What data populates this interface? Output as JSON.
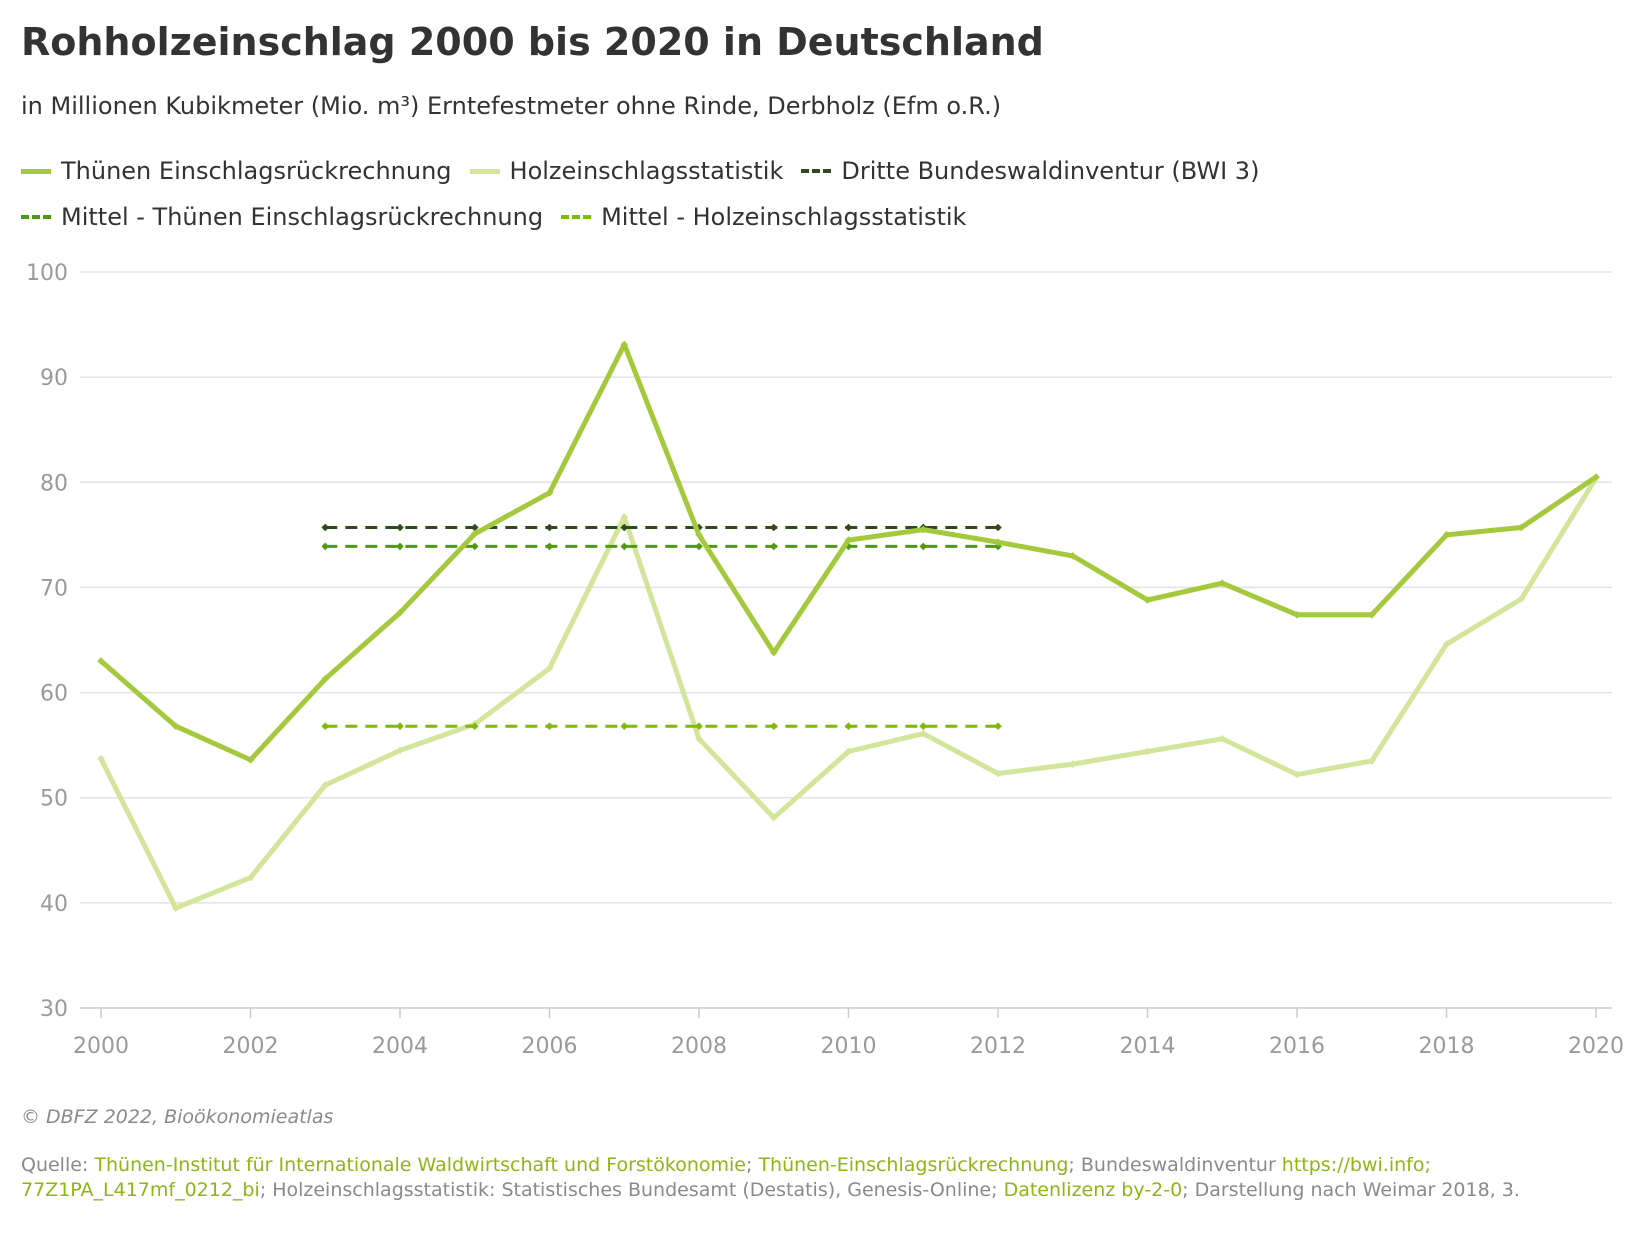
{
  "title": "Rohholzeinschlag 2000 bis 2020 in Deutschland",
  "subtitle": "in Millionen Kubikmeter (Mio. m³) Erntefestmeter ohne Rinde, Derbholz (Efm o.R.)",
  "legend": [
    {
      "label": "Thünen Einschlagsrückrechnung",
      "style": "solid",
      "color": "#a5c93c"
    },
    {
      "label": "Holzeinschlagsstatistik",
      "style": "solid",
      "color": "#d4e59b"
    },
    {
      "label": "Dritte Bundeswaldinventur (BWI 3)",
      "style": "dashed",
      "color": "#2f4a1b"
    },
    {
      "label": "Mittel - Thünen Einschlagsrückrechnung",
      "style": "dashed",
      "color": "#4f9a12"
    },
    {
      "label": "Mittel - Holzeinschlagsstatistik",
      "style": "dashed",
      "color": "#7dbb05"
    }
  ],
  "chart_data": {
    "type": "line",
    "xlim": [
      2000,
      2020
    ],
    "ylim": [
      30,
      100
    ],
    "x_ticks": [
      "2000",
      "2002",
      "2004",
      "2006",
      "2008",
      "2010",
      "2012",
      "2014",
      "2016",
      "2018",
      "2020"
    ],
    "y_ticks": [
      "30",
      "40",
      "50",
      "60",
      "70",
      "80",
      "90",
      "100"
    ],
    "grid": true,
    "legend_position": "top",
    "series": [
      {
        "name": "Thünen Einschlagsrückrechnung",
        "style": "solid",
        "color": "#a5c93c",
        "x": [
          2000,
          2001,
          2002,
          2003,
          2004,
          2005,
          2006,
          2007,
          2008,
          2009,
          2010,
          2011,
          2012,
          2013,
          2014,
          2015,
          2016,
          2017,
          2018,
          2019,
          2020
        ],
        "y": [
          63.0,
          56.8,
          53.6,
          61.3,
          67.6,
          75.1,
          79.0,
          93.1,
          75.0,
          63.8,
          74.5,
          75.5,
          74.3,
          73.0,
          68.8,
          70.4,
          67.4,
          67.4,
          75.0,
          75.7,
          80.5
        ]
      },
      {
        "name": "Holzeinschlagsstatistik",
        "style": "solid",
        "color": "#d4e59b",
        "x": [
          2000,
          2001,
          2002,
          2003,
          2004,
          2005,
          2006,
          2007,
          2008,
          2009,
          2010,
          2011,
          2012,
          2013,
          2014,
          2015,
          2016,
          2017,
          2018,
          2019,
          2020
        ],
        "y": [
          53.7,
          39.5,
          42.4,
          51.2,
          54.5,
          57.0,
          62.3,
          76.7,
          55.6,
          48.1,
          54.4,
          56.1,
          52.3,
          53.2,
          54.4,
          55.6,
          52.2,
          53.5,
          64.6,
          68.9,
          80.4
        ]
      },
      {
        "name": "Dritte Bundeswaldinventur (BWI 3)",
        "style": "dashed",
        "color": "#2f4a1b",
        "x": [
          2003,
          2004,
          2005,
          2006,
          2007,
          2008,
          2009,
          2010,
          2011,
          2012
        ],
        "y": [
          75.7,
          75.7,
          75.7,
          75.7,
          75.7,
          75.7,
          75.7,
          75.7,
          75.7,
          75.7
        ]
      },
      {
        "name": "Mittel - Thünen Einschlagsrückrechnung",
        "style": "dashed",
        "color": "#4f9a12",
        "x": [
          2003,
          2004,
          2005,
          2006,
          2007,
          2008,
          2009,
          2010,
          2011,
          2012
        ],
        "y": [
          73.9,
          73.9,
          73.9,
          73.9,
          73.9,
          73.9,
          73.9,
          73.9,
          73.9,
          73.9
        ]
      },
      {
        "name": "Mittel - Holzeinschlagsstatistik",
        "style": "dashed",
        "color": "#7dbb05",
        "x": [
          2003,
          2004,
          2005,
          2006,
          2007,
          2008,
          2009,
          2010,
          2011,
          2012
        ],
        "y": [
          56.8,
          56.8,
          56.8,
          56.8,
          56.8,
          56.8,
          56.8,
          56.8,
          56.8,
          56.8
        ]
      }
    ]
  },
  "footer": {
    "copyright": "© DBFZ 2022, Bioökonomieatlas",
    "source_label": "Quelle: ",
    "source_link_1": "Thünen-Institut für Internationale Waldwirtschaft und Forstökonomie",
    "sep_1": "; ",
    "source_link_2": "Thünen-Einschlagsrückrechnung",
    "sep_2": "; Bundeswaldinventur ",
    "source_link_3": "https://bwi.info; 77Z1PA_L417mf_0212_bi",
    "sep_3": "; Holzeinschlagsstatistik: Statistisches Bundesamt (Destatis), Genesis-Online; ",
    "source_link_4": "Datenlizenz by-2-0",
    "sep_4": "; Darstellung nach Weimar 2018, 3."
  }
}
